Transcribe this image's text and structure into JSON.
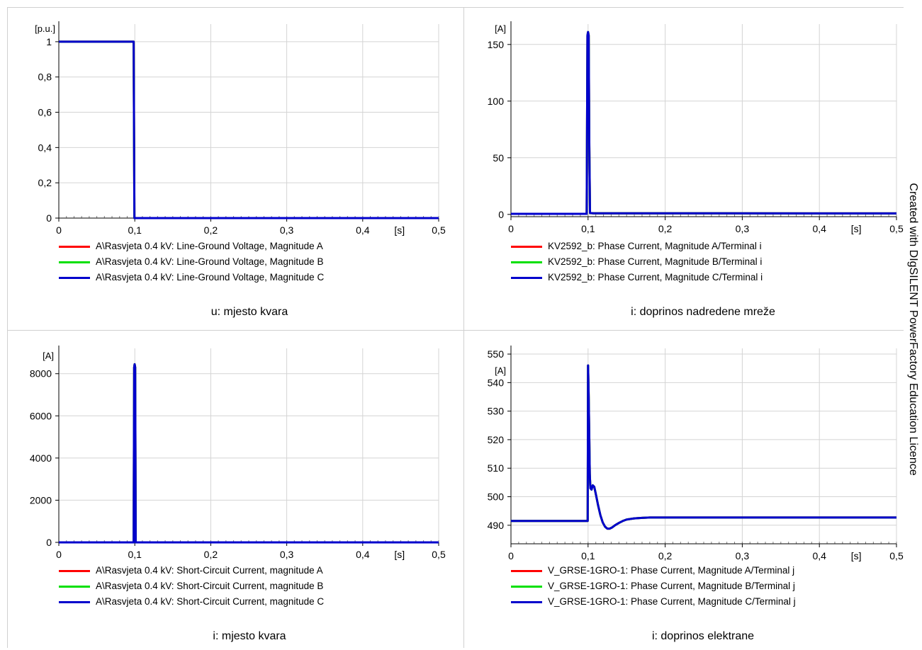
{
  "watermark": "Created with DIgSILENT PowerFactory Education Licence",
  "colors": {
    "phase_a": "#ff0000",
    "phase_b": "#00e000",
    "phase_c": "#0000cc",
    "grid": "#d4d4d4",
    "axis": "#000000"
  },
  "chart_data": [
    {
      "id": "voltage-fault",
      "type": "line",
      "title": "u: mjesto kvara",
      "xlabel": "[s]",
      "ylabel": "[p.u.]",
      "xlim": [
        0,
        0.5
      ],
      "ylim": [
        0,
        1.1
      ],
      "xticks": [
        0,
        0.1,
        0.2,
        0.3,
        0.4,
        0.5
      ],
      "xtick_labels": [
        "0",
        "0,1",
        "0,2",
        "0,3",
        "0,4",
        "0,5"
      ],
      "yticks": [
        0,
        0.2,
        0.4,
        0.6,
        0.8,
        1
      ],
      "ytick_labels": [
        "0",
        "0,2",
        "0,4",
        "0,6",
        "0,8",
        "1"
      ],
      "grid": true,
      "legend_position": "bottom",
      "series": [
        {
          "name": "A\\Rasvjeta 0.4 kV: Line-Ground Voltage, Magnitude A",
          "color": "#ff0000",
          "x": [
            0,
            0.0985,
            0.0995,
            0.5
          ],
          "y": [
            1.0,
            1.0,
            0.0,
            0.0
          ]
        },
        {
          "name": "A\\Rasvjeta 0.4 kV: Line-Ground Voltage, Magnitude B",
          "color": "#00e000",
          "x": [
            0,
            0.0985,
            0.0995,
            0.5
          ],
          "y": [
            1.0,
            1.0,
            0.0,
            0.0
          ]
        },
        {
          "name": "A\\Rasvjeta 0.4 kV: Line-Ground Voltage, Magnitude C",
          "color": "#0000cc",
          "x": [
            0,
            0.0985,
            0.0995,
            0.5
          ],
          "y": [
            1.0,
            1.0,
            0.0,
            0.0
          ]
        }
      ]
    },
    {
      "id": "current-grid",
      "type": "line",
      "title": "i: doprinos nadredene mreže",
      "xlabel": "[s]",
      "ylabel": "[A]",
      "xlim": [
        0,
        0.5
      ],
      "ylim": [
        -2,
        168
      ],
      "xticks": [
        0,
        0.1,
        0.2,
        0.3,
        0.4,
        0.5
      ],
      "xtick_labels": [
        "0",
        "0,1",
        "0,2",
        "0,3",
        "0,4",
        "0,5"
      ],
      "yticks": [
        0,
        50,
        100,
        150
      ],
      "ytick_labels": [
        "0",
        "50",
        "100",
        "150"
      ],
      "grid": true,
      "legend_position": "bottom",
      "series": [
        {
          "name": "KV2592_b: Phase Current, Magnitude A/Terminal i",
          "color": "#ff0000",
          "x": [
            0,
            0.0982,
            0.0992,
            0.1,
            0.1008,
            0.1016,
            0.1025,
            0.107,
            0.5
          ],
          "y": [
            0.5,
            0.5,
            158,
            161,
            158,
            60,
            1.3,
            1.0,
            0.9
          ]
        },
        {
          "name": "KV2592_b: Phase Current, Magnitude B/Terminal i",
          "color": "#00e000",
          "x": [
            0,
            0.0982,
            0.0992,
            0.1,
            0.1008,
            0.1016,
            0.1025,
            0.107,
            0.5
          ],
          "y": [
            0.5,
            0.5,
            158,
            161,
            158,
            60,
            1.3,
            1.0,
            0.9
          ]
        },
        {
          "name": "KV2592_b: Phase Current, Magnitude C/Terminal i",
          "color": "#0000cc",
          "x": [
            0,
            0.0982,
            0.0992,
            0.1,
            0.1008,
            0.1016,
            0.1025,
            0.107,
            0.5
          ],
          "y": [
            0.5,
            0.5,
            158,
            161,
            158,
            60,
            1.3,
            1.0,
            0.9
          ]
        }
      ]
    },
    {
      "id": "current-fault",
      "type": "line",
      "title": "i: mjesto kvara",
      "xlabel": "[s]",
      "ylabel": "[A]",
      "xlim": [
        0,
        0.5
      ],
      "ylim": [
        0,
        9200
      ],
      "xticks": [
        0,
        0.1,
        0.2,
        0.3,
        0.4,
        0.5
      ],
      "xtick_labels": [
        "0",
        "0,1",
        "0,2",
        "0,3",
        "0,4",
        "0,5"
      ],
      "yticks": [
        0,
        2000,
        4000,
        6000,
        8000
      ],
      "ytick_labels": [
        "0",
        "2000",
        "4000",
        "6000",
        "8000"
      ],
      "grid": true,
      "legend_position": "bottom",
      "series": [
        {
          "name": "A\\Rasvjeta 0.4 kV: Short-Circuit Current, magnitude A",
          "color": "#ff0000",
          "x": [
            0,
            0.0985,
            0.0992,
            0.0998,
            0.1005,
            0.1012,
            0.5
          ],
          "y": [
            0,
            0,
            8300,
            8450,
            8300,
            0,
            0
          ]
        },
        {
          "name": "A\\Rasvjeta 0.4 kV: Short-Circuit Current, magnitude B",
          "color": "#00e000",
          "x": [
            0,
            0.0985,
            0.0992,
            0.0998,
            0.1005,
            0.1012,
            0.5
          ],
          "y": [
            0,
            0,
            8300,
            8450,
            8300,
            0,
            0
          ]
        },
        {
          "name": "A\\Rasvjeta 0.4 kV: Short-Circuit Current, magnitude C",
          "color": "#0000cc",
          "x": [
            0,
            0.0985,
            0.0992,
            0.0998,
            0.1005,
            0.1012,
            0.5
          ],
          "y": [
            0,
            0,
            8300,
            8450,
            8300,
            0,
            0
          ]
        }
      ]
    },
    {
      "id": "current-plant",
      "type": "line",
      "title": "i: doprinos elektrane",
      "xlabel": "[s]",
      "ylabel": "[A]",
      "xlim": [
        0,
        0.5
      ],
      "ylim": [
        483.5,
        552
      ],
      "xticks": [
        0,
        0.1,
        0.2,
        0.3,
        0.4,
        0.5
      ],
      "xtick_labels": [
        "0",
        "0,1",
        "0,2",
        "0,3",
        "0,4",
        "0,5"
      ],
      "yticks": [
        490,
        500,
        510,
        520,
        530,
        540,
        550
      ],
      "ytick_labels": [
        "490",
        "500",
        "510",
        "520",
        "530",
        "540",
        "550"
      ],
      "grid": true,
      "legend_position": "bottom",
      "series": [
        {
          "name": "V_GRSE-1GRO-1: Phase Current, Magnitude A/Terminal j",
          "color": "#ff0000",
          "x": [
            0,
            0.0995,
            0.1,
            0.1008,
            0.1016,
            0.1022,
            0.103,
            0.1045,
            0.106,
            0.108,
            0.11,
            0.113,
            0.116,
            0.119,
            0.122,
            0.125,
            0.128,
            0.131,
            0.135,
            0.14,
            0.145,
            0.15,
            0.16,
            0.17,
            0.18,
            0.2,
            0.25,
            0.5
          ],
          "y": [
            491.5,
            491.5,
            546,
            535,
            520,
            508,
            503,
            502.5,
            504,
            503.5,
            501,
            497,
            493.5,
            491,
            489.5,
            488.8,
            488.8,
            489.2,
            490,
            490.8,
            491.5,
            492,
            492.4,
            492.6,
            492.7,
            492.7,
            492.7,
            492.7
          ]
        },
        {
          "name": "V_GRSE-1GRO-1: Phase Current, Magnitude B/Terminal j",
          "color": "#00e000",
          "x": [
            0,
            0.0995,
            0.1,
            0.1008,
            0.1016,
            0.1022,
            0.103,
            0.1045,
            0.106,
            0.108,
            0.11,
            0.113,
            0.116,
            0.119,
            0.122,
            0.125,
            0.128,
            0.131,
            0.135,
            0.14,
            0.145,
            0.15,
            0.16,
            0.17,
            0.18,
            0.2,
            0.25,
            0.5
          ],
          "y": [
            491.5,
            491.5,
            546,
            535,
            520,
            508,
            503,
            502.5,
            504,
            503.5,
            501,
            497,
            493.5,
            491,
            489.5,
            488.8,
            488.8,
            489.2,
            490,
            490.8,
            491.5,
            492,
            492.4,
            492.6,
            492.7,
            492.7,
            492.7,
            492.7
          ]
        },
        {
          "name": "V_GRSE-1GRO-1: Phase Current, Magnitude C/Terminal j",
          "color": "#0000cc",
          "x": [
            0,
            0.0995,
            0.1,
            0.1008,
            0.1016,
            0.1022,
            0.103,
            0.1045,
            0.106,
            0.108,
            0.11,
            0.113,
            0.116,
            0.119,
            0.122,
            0.125,
            0.128,
            0.131,
            0.135,
            0.14,
            0.145,
            0.15,
            0.16,
            0.17,
            0.18,
            0.2,
            0.25,
            0.5
          ],
          "y": [
            491.5,
            491.5,
            546,
            535,
            520,
            508,
            503,
            502.5,
            504,
            503.5,
            501,
            497,
            493.5,
            491,
            489.5,
            488.8,
            488.8,
            489.2,
            490,
            490.8,
            491.5,
            492,
            492.4,
            492.6,
            492.7,
            492.7,
            492.7,
            492.7
          ]
        }
      ]
    }
  ]
}
